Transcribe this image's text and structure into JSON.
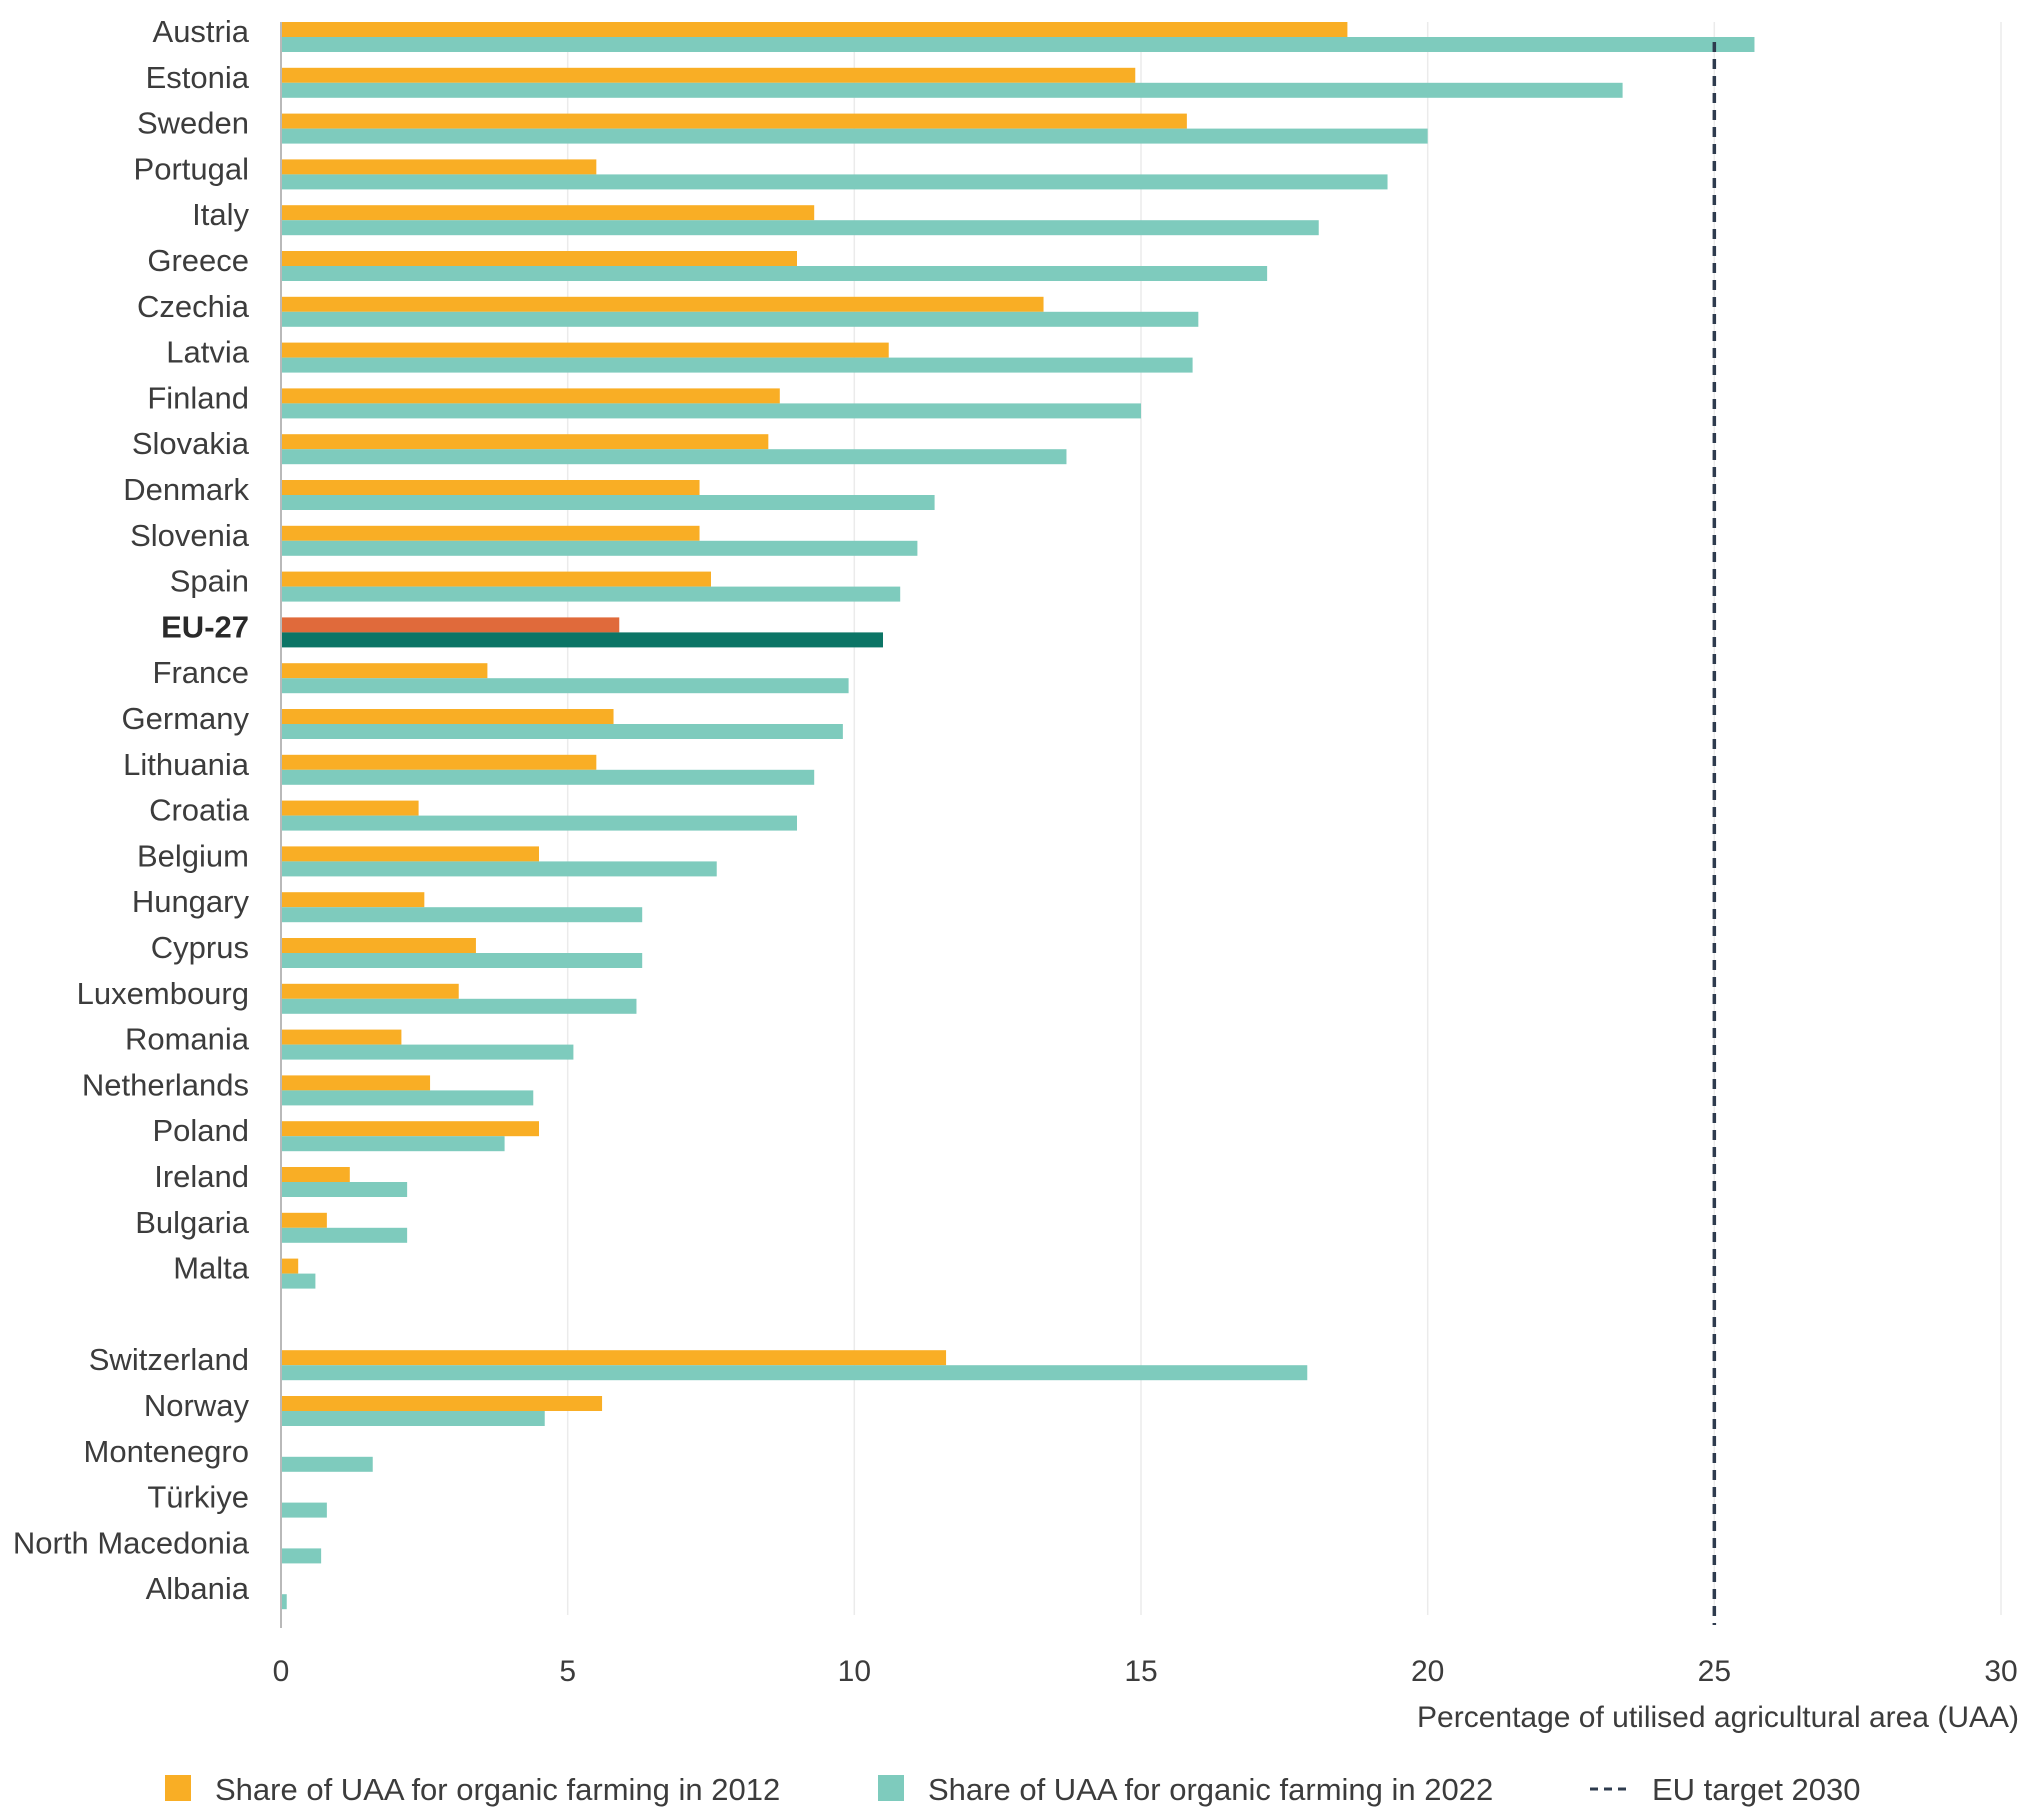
{
  "chart_data": {
    "type": "bar",
    "orientation": "horizontal",
    "title": "",
    "xlabel": "Percentage of utilised agricultural area (UAA)",
    "ylabel": "",
    "xlim": [
      0,
      30
    ],
    "xticks": [
      0,
      5,
      10,
      15,
      20,
      25,
      30
    ],
    "grid": true,
    "legend_position": "bottom",
    "categories": [
      "Austria",
      "Estonia",
      "Sweden",
      "Portugal",
      "Italy",
      "Greece",
      "Czechia",
      "Latvia",
      "Finland",
      "Slovakia",
      "Denmark",
      "Slovenia",
      "Spain",
      "EU-27",
      "France",
      "Germany",
      "Lithuania",
      "Croatia",
      "Belgium",
      "Hungary",
      "Cyprus",
      "Luxembourg",
      "Romania",
      "Netherlands",
      "Poland",
      "Ireland",
      "Bulgaria",
      "Malta",
      "Switzerland",
      "Norway",
      "Montenegro",
      "Türkiye",
      "North Macedonia",
      "Albania"
    ],
    "highlight_category": "EU-27",
    "group_break_before": "Switzerland",
    "series": [
      {
        "name": "Share of UAA for organic farming in 2012",
        "color": "#f9ae25",
        "highlight_color": "#e06a3b",
        "values": [
          18.6,
          14.9,
          15.8,
          5.5,
          9.3,
          9.0,
          13.3,
          10.6,
          8.7,
          8.5,
          7.3,
          7.3,
          7.5,
          5.9,
          3.6,
          5.8,
          5.5,
          2.4,
          4.5,
          2.5,
          3.4,
          3.1,
          2.1,
          2.6,
          4.5,
          1.2,
          0.8,
          0.3,
          11.6,
          5.6,
          null,
          null,
          null,
          null
        ]
      },
      {
        "name": "Share of UAA for organic farming in 2022",
        "color": "#7ecbbd",
        "highlight_color": "#0c7566",
        "values": [
          25.7,
          23.4,
          20.0,
          19.3,
          18.1,
          17.2,
          16.0,
          15.9,
          15.0,
          13.7,
          11.4,
          11.1,
          10.8,
          10.5,
          9.9,
          9.8,
          9.3,
          9.0,
          7.6,
          6.3,
          6.3,
          6.2,
          5.1,
          4.4,
          3.9,
          2.2,
          2.2,
          0.6,
          17.9,
          4.6,
          1.6,
          0.8,
          0.7,
          0.1
        ]
      }
    ],
    "reference_line": {
      "name": "EU target 2030",
      "value": 25,
      "style": "dashed",
      "color": "#2e3b4e"
    }
  }
}
